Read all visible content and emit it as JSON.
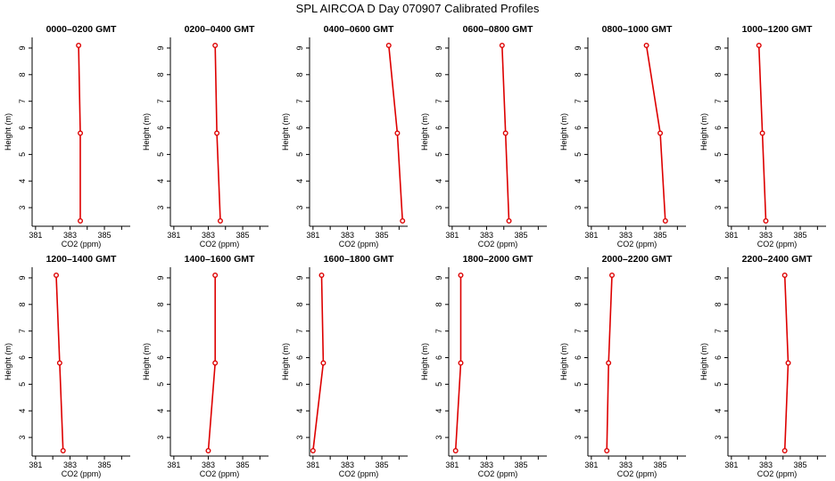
{
  "figure": {
    "title": "SPL AIRCOA D  Day 070907  Calibrated Profiles"
  },
  "colors": {
    "series": "#dd0000",
    "axes": "#000000",
    "background": "#ffffff"
  },
  "chart_data": [
    {
      "type": "line",
      "title": "0000–0200 GMT",
      "xlabel": "CO2 (ppm)",
      "ylabel": "Height (m)",
      "xlim": [
        380.8,
        386.5
      ],
      "ylim": [
        2.3,
        9.4
      ],
      "xticks": [
        381,
        382,
        383,
        384,
        385,
        386
      ],
      "xtick_labels": [
        "381",
        "",
        "383",
        "",
        "385",
        ""
      ],
      "yticks": [
        3,
        4,
        5,
        6,
        7,
        8,
        9
      ],
      "ytick_labels": [
        "3",
        "4",
        "5",
        "6",
        "7",
        "8",
        "9"
      ],
      "series": [
        {
          "x": [
            383.5,
            383.6,
            383.6
          ],
          "y": [
            9.1,
            5.8,
            2.5
          ]
        }
      ]
    },
    {
      "type": "line",
      "title": "0200–0400 GMT",
      "xlabel": "CO2 (ppm)",
      "ylabel": "Height (m)",
      "xlim": [
        380.8,
        386.5
      ],
      "ylim": [
        2.3,
        9.4
      ],
      "xticks": [
        381,
        382,
        383,
        384,
        385,
        386
      ],
      "xtick_labels": [
        "381",
        "",
        "383",
        "",
        "385",
        ""
      ],
      "yticks": [
        3,
        4,
        5,
        6,
        7,
        8,
        9
      ],
      "ytick_labels": [
        "3",
        "4",
        "5",
        "6",
        "7",
        "8",
        "9"
      ],
      "series": [
        {
          "x": [
            383.4,
            383.5,
            383.7
          ],
          "y": [
            9.1,
            5.8,
            2.5
          ]
        }
      ]
    },
    {
      "type": "line",
      "title": "0400–0600 GMT",
      "xlabel": "CO2 (ppm)",
      "ylabel": "Height (m)",
      "xlim": [
        380.8,
        386.5
      ],
      "ylim": [
        2.3,
        9.4
      ],
      "xticks": [
        381,
        382,
        383,
        384,
        385,
        386
      ],
      "xtick_labels": [
        "381",
        "",
        "383",
        "",
        "385",
        ""
      ],
      "yticks": [
        3,
        4,
        5,
        6,
        7,
        8,
        9
      ],
      "ytick_labels": [
        "3",
        "4",
        "5",
        "6",
        "7",
        "8",
        "9"
      ],
      "series": [
        {
          "x": [
            385.4,
            385.9,
            386.2
          ],
          "y": [
            9.1,
            5.8,
            2.5
          ]
        }
      ]
    },
    {
      "type": "line",
      "title": "0600–0800 GMT",
      "xlabel": "CO2 (ppm)",
      "ylabel": "Height (m)",
      "xlim": [
        380.8,
        386.5
      ],
      "ylim": [
        2.3,
        9.4
      ],
      "xticks": [
        381,
        382,
        383,
        384,
        385,
        386
      ],
      "xtick_labels": [
        "381",
        "",
        "383",
        "",
        "385",
        ""
      ],
      "yticks": [
        3,
        4,
        5,
        6,
        7,
        8,
        9
      ],
      "ytick_labels": [
        "3",
        "4",
        "5",
        "6",
        "7",
        "8",
        "9"
      ],
      "series": [
        {
          "x": [
            383.9,
            384.1,
            384.3
          ],
          "y": [
            9.1,
            5.8,
            2.5
          ]
        }
      ]
    },
    {
      "type": "line",
      "title": "0800–1000 GMT",
      "xlabel": "CO2 (ppm)",
      "ylabel": "Height (m)",
      "xlim": [
        380.8,
        386.5
      ],
      "ylim": [
        2.3,
        9.4
      ],
      "xticks": [
        381,
        382,
        383,
        384,
        385,
        386
      ],
      "xtick_labels": [
        "381",
        "",
        "383",
        "",
        "385",
        ""
      ],
      "yticks": [
        3,
        4,
        5,
        6,
        7,
        8,
        9
      ],
      "ytick_labels": [
        "3",
        "4",
        "5",
        "6",
        "7",
        "8",
        "9"
      ],
      "series": [
        {
          "x": [
            384.2,
            385.0,
            385.3
          ],
          "y": [
            9.1,
            5.8,
            2.5
          ]
        }
      ]
    },
    {
      "type": "line",
      "title": "1000–1200 GMT",
      "xlabel": "CO2 (ppm)",
      "ylabel": "Height (m)",
      "xlim": [
        380.8,
        386.5
      ],
      "ylim": [
        2.3,
        9.4
      ],
      "xticks": [
        381,
        382,
        383,
        384,
        385,
        386
      ],
      "xtick_labels": [
        "381",
        "",
        "383",
        "",
        "385",
        ""
      ],
      "yticks": [
        3,
        4,
        5,
        6,
        7,
        8,
        9
      ],
      "ytick_labels": [
        "3",
        "4",
        "5",
        "6",
        "7",
        "8",
        "9"
      ],
      "series": [
        {
          "x": [
            382.6,
            382.8,
            383.0
          ],
          "y": [
            9.1,
            5.8,
            2.5
          ]
        }
      ]
    },
    {
      "type": "line",
      "title": "1200–1400 GMT",
      "xlabel": "CO2 (ppm)",
      "ylabel": "Height (m)",
      "xlim": [
        380.8,
        386.5
      ],
      "ylim": [
        2.3,
        9.4
      ],
      "xticks": [
        381,
        382,
        383,
        384,
        385,
        386
      ],
      "xtick_labels": [
        "381",
        "",
        "383",
        "",
        "385",
        ""
      ],
      "yticks": [
        3,
        4,
        5,
        6,
        7,
        8,
        9
      ],
      "ytick_labels": [
        "3",
        "4",
        "5",
        "6",
        "7",
        "8",
        "9"
      ],
      "series": [
        {
          "x": [
            382.2,
            382.4,
            382.6
          ],
          "y": [
            9.1,
            5.8,
            2.5
          ]
        }
      ]
    },
    {
      "type": "line",
      "title": "1400–1600 GMT",
      "xlabel": "CO2 (ppm)",
      "ylabel": "Height (m)",
      "xlim": [
        380.8,
        386.5
      ],
      "ylim": [
        2.3,
        9.4
      ],
      "xticks": [
        381,
        382,
        383,
        384,
        385,
        386
      ],
      "xtick_labels": [
        "381",
        "",
        "383",
        "",
        "385",
        ""
      ],
      "yticks": [
        3,
        4,
        5,
        6,
        7,
        8,
        9
      ],
      "ytick_labels": [
        "3",
        "4",
        "5",
        "6",
        "7",
        "8",
        "9"
      ],
      "series": [
        {
          "x": [
            383.4,
            383.4,
            383.0
          ],
          "y": [
            9.1,
            5.8,
            2.5
          ]
        }
      ]
    },
    {
      "type": "line",
      "title": "1600–1800 GMT",
      "xlabel": "CO2 (ppm)",
      "ylabel": "Height (m)",
      "xlim": [
        380.8,
        386.5
      ],
      "ylim": [
        2.3,
        9.4
      ],
      "xticks": [
        381,
        382,
        383,
        384,
        385,
        386
      ],
      "xtick_labels": [
        "381",
        "",
        "383",
        "",
        "385",
        ""
      ],
      "yticks": [
        3,
        4,
        5,
        6,
        7,
        8,
        9
      ],
      "ytick_labels": [
        "3",
        "4",
        "5",
        "6",
        "7",
        "8",
        "9"
      ],
      "series": [
        {
          "x": [
            381.5,
            381.6,
            381.0
          ],
          "y": [
            9.1,
            5.8,
            2.5
          ]
        }
      ]
    },
    {
      "type": "line",
      "title": "1800–2000 GMT",
      "xlabel": "CO2 (ppm)",
      "ylabel": "Height (m)",
      "xlim": [
        380.8,
        386.5
      ],
      "ylim": [
        2.3,
        9.4
      ],
      "xticks": [
        381,
        382,
        383,
        384,
        385,
        386
      ],
      "xtick_labels": [
        "381",
        "",
        "383",
        "",
        "385",
        ""
      ],
      "yticks": [
        3,
        4,
        5,
        6,
        7,
        8,
        9
      ],
      "ytick_labels": [
        "3",
        "4",
        "5",
        "6",
        "7",
        "8",
        "9"
      ],
      "series": [
        {
          "x": [
            381.5,
            381.5,
            381.2
          ],
          "y": [
            9.1,
            5.8,
            2.5
          ]
        }
      ]
    },
    {
      "type": "line",
      "title": "2000–2200 GMT",
      "xlabel": "CO2 (ppm)",
      "ylabel": "Height (m)",
      "xlim": [
        380.8,
        386.5
      ],
      "ylim": [
        2.3,
        9.4
      ],
      "xticks": [
        381,
        382,
        383,
        384,
        385,
        386
      ],
      "xtick_labels": [
        "381",
        "",
        "383",
        "",
        "385",
        ""
      ],
      "yticks": [
        3,
        4,
        5,
        6,
        7,
        8,
        9
      ],
      "ytick_labels": [
        "3",
        "4",
        "5",
        "6",
        "7",
        "8",
        "9"
      ],
      "series": [
        {
          "x": [
            382.2,
            382.0,
            381.9
          ],
          "y": [
            9.1,
            5.8,
            2.5
          ]
        }
      ]
    },
    {
      "type": "line",
      "title": "2200–2400 GMT",
      "xlabel": "CO2 (ppm)",
      "ylabel": "Height (m)",
      "xlim": [
        380.8,
        386.5
      ],
      "ylim": [
        2.3,
        9.4
      ],
      "xticks": [
        381,
        382,
        383,
        384,
        385,
        386
      ],
      "xtick_labels": [
        "381",
        "",
        "383",
        "",
        "385",
        ""
      ],
      "yticks": [
        3,
        4,
        5,
        6,
        7,
        8,
        9
      ],
      "ytick_labels": [
        "3",
        "4",
        "5",
        "6",
        "7",
        "8",
        "9"
      ],
      "series": [
        {
          "x": [
            384.1,
            384.3,
            384.1
          ],
          "y": [
            9.1,
            5.8,
            2.5
          ]
        }
      ]
    }
  ]
}
